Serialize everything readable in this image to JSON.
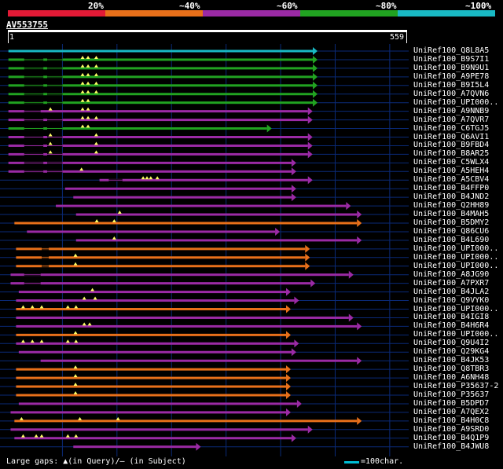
{
  "legend": {
    "labels": [
      "20%",
      "~40%",
      "~60%",
      "~80%",
      "~100%"
    ],
    "colors": [
      "#e31a36",
      "#e8701a",
      "#9b2aa5",
      "#21a321",
      "#19b9c4"
    ]
  },
  "query": {
    "id": "AV553755",
    "start": "1",
    "end": "559",
    "length": 559
  },
  "colors": {
    "orange": "#e8701a",
    "purple": "#9b2aa5",
    "green": "#21a321",
    "cyan": "#19b9c4",
    "gap": "#ffff66",
    "grid": "#0a2a77"
  },
  "hits": [
    {
      "label": "UniRef100_Q8L8A5",
      "color": "cyan",
      "s": 1,
      "e": 559,
      "gq": [],
      "gs": []
    },
    {
      "label": "UniRef100_B9S7I1",
      "color": "green",
      "s": 1,
      "e": 559,
      "gq": [
        137,
        147,
        162
      ],
      "gs": [
        [
          30,
          65
        ],
        [
          72,
          100
        ]
      ]
    },
    {
      "label": "UniRef100_B9N9U1",
      "color": "green",
      "s": 1,
      "e": 559,
      "gq": [
        137,
        147,
        162
      ],
      "gs": [
        [
          30,
          65
        ],
        [
          72,
          100
        ]
      ]
    },
    {
      "label": "UniRef100_A9PE78",
      "color": "green",
      "s": 1,
      "e": 559,
      "gq": [
        137,
        147,
        162
      ],
      "gs": [
        [
          30,
          65
        ],
        [
          72,
          100
        ]
      ]
    },
    {
      "label": "UniRef100_B9I5L4",
      "color": "green",
      "s": 1,
      "e": 559,
      "gq": [
        137,
        147,
        162
      ],
      "gs": [
        [
          30,
          65
        ],
        [
          72,
          100
        ]
      ]
    },
    {
      "label": "UniRef100_A7QVN6",
      "color": "green",
      "s": 1,
      "e": 559,
      "gq": [
        137,
        147,
        162
      ],
      "gs": [
        [
          30,
          65
        ],
        [
          72,
          100
        ]
      ]
    },
    {
      "label": "UniRef100_UPI000..",
      "color": "green",
      "s": 1,
      "e": 559,
      "gq": [
        137,
        147
      ],
      "gs": [
        [
          30,
          65
        ],
        [
          72,
          100
        ]
      ]
    },
    {
      "label": "UniRef100_A9NNB9",
      "color": "purple",
      "s": 1,
      "e": 550,
      "gq": [
        78,
        137,
        147
      ],
      "gs": [
        [
          30,
          60
        ]
      ]
    },
    {
      "label": "UniRef100_A7QVR7",
      "color": "purple",
      "s": 1,
      "e": 550,
      "gq": [
        137,
        147,
        162
      ],
      "gs": [
        [
          30,
          65
        ],
        [
          72,
          100
        ]
      ]
    },
    {
      "label": "UniRef100_C6TGJ5",
      "color": "green",
      "s": 1,
      "e": 475,
      "gq": [
        137,
        147
      ],
      "gs": [
        [
          30,
          65
        ],
        [
          72,
          100
        ]
      ]
    },
    {
      "label": "UniRef100_Q6AVI1",
      "color": "purple",
      "s": 1,
      "e": 550,
      "gq": [
        78,
        162
      ],
      "gs": [
        [
          30,
          65
        ],
        [
          72,
          100
        ]
      ]
    },
    {
      "label": "UniRef100_B9FBD4",
      "color": "purple",
      "s": 1,
      "e": 550,
      "gq": [
        78,
        162
      ],
      "gs": [
        [
          30,
          65
        ],
        [
          72,
          100
        ]
      ]
    },
    {
      "label": "UniRef100_B8AR25",
      "color": "purple",
      "s": 1,
      "e": 550,
      "gq": [
        78,
        162
      ],
      "gs": [
        [
          30,
          65
        ],
        [
          72,
          100
        ]
      ]
    },
    {
      "label": "UniRef100_C5WLX4",
      "color": "purple",
      "s": 1,
      "e": 520,
      "gq": [],
      "gs": [
        [
          30,
          65
        ],
        [
          72,
          100
        ]
      ]
    },
    {
      "label": "UniRef100_A5HEH4",
      "color": "purple",
      "s": 1,
      "e": 520,
      "gq": [
        135
      ],
      "gs": [
        [
          30,
          65
        ],
        [
          72,
          100
        ]
      ]
    },
    {
      "label": "UniRef100_A5CBV4",
      "color": "purple",
      "s": 168,
      "e": 550,
      "gq": [
        248,
        255,
        262,
        274
      ],
      "gs": [
        [
          185,
          210
        ]
      ]
    },
    {
      "label": "UniRef100_B4FFP0",
      "color": "purple",
      "s": 105,
      "e": 520,
      "gq": [],
      "gs": []
    },
    {
      "label": "UniRef100_B4JND2",
      "color": "purple",
      "s": 120,
      "e": 520,
      "gq": [],
      "gs": []
    },
    {
      "label": "UniRef100_Q2HH89",
      "color": "purple",
      "s": 88,
      "e": 620,
      "gq": [],
      "gs": []
    },
    {
      "label": "UniRef100_B4MAH5",
      "color": "purple",
      "s": 125,
      "e": 640,
      "gq": [
        205
      ],
      "gs": []
    },
    {
      "label": "UniRef100_B5DMY2",
      "color": "orange",
      "s": 12,
      "e": 640,
      "gq": [
        163,
        195
      ],
      "gs": []
    },
    {
      "label": "UniRef100_Q86CU6",
      "color": "purple",
      "s": 35,
      "e": 490,
      "gq": [],
      "gs": []
    },
    {
      "label": "UniRef100_B4L690",
      "color": "purple",
      "s": 125,
      "e": 640,
      "gq": [
        195
      ],
      "gs": []
    },
    {
      "label": "UniRef100_UPI000..",
      "color": "orange",
      "s": 15,
      "e": 545,
      "gq": [],
      "gs": [
        [
          62,
          75
        ]
      ]
    },
    {
      "label": "UniRef100_UPI000..",
      "color": "orange",
      "s": 15,
      "e": 545,
      "gq": [
        124
      ],
      "gs": [
        [
          62,
          75
        ]
      ]
    },
    {
      "label": "UniRef100_UPI000..",
      "color": "orange",
      "s": 15,
      "e": 545,
      "gq": [
        124
      ],
      "gs": [
        [
          62,
          75
        ]
      ]
    },
    {
      "label": "UniRef100_A8JG90",
      "color": "purple",
      "s": 5,
      "e": 625,
      "gq": [],
      "gs": [
        [
          30,
          60
        ]
      ]
    },
    {
      "label": "UniRef100_A7PXR7",
      "color": "purple",
      "s": 5,
      "e": 555,
      "gq": [],
      "gs": [
        [
          30,
          60
        ]
      ]
    },
    {
      "label": "UniRef100_B4JLA2",
      "color": "purple",
      "s": 20,
      "e": 510,
      "gq": [
        155
      ],
      "gs": []
    },
    {
      "label": "UniRef100_Q9VYK0",
      "color": "purple",
      "s": 15,
      "e": 525,
      "gq": [
        140,
        160
      ],
      "gs": []
    },
    {
      "label": "UniRef100_UPI000..",
      "color": "orange",
      "s": 15,
      "e": 510,
      "gq": [
        28,
        45,
        62,
        110,
        125
      ],
      "gs": []
    },
    {
      "label": "UniRef100_B4IGI8",
      "color": "purple",
      "s": 15,
      "e": 625,
      "gq": [],
      "gs": []
    },
    {
      "label": "UniRef100_B4H6R4",
      "color": "purple",
      "s": 15,
      "e": 640,
      "gq": [
        140,
        150
      ],
      "gs": []
    },
    {
      "label": "UniRef100_UPI000..",
      "color": "orange",
      "s": 15,
      "e": 510,
      "gq": [
        124
      ],
      "gs": []
    },
    {
      "label": "UniRef100_Q9U4I2",
      "color": "purple",
      "s": 15,
      "e": 525,
      "gq": [
        28,
        45,
        62,
        110,
        125
      ],
      "gs": []
    },
    {
      "label": "UniRef100_Q29KG4",
      "color": "purple",
      "s": 20,
      "e": 520,
      "gq": [],
      "gs": []
    },
    {
      "label": "UniRef100_B4JK53",
      "color": "purple",
      "s": 60,
      "e": 640,
      "gq": [],
      "gs": []
    },
    {
      "label": "UniRef100_Q8TBR3",
      "color": "orange",
      "s": 15,
      "e": 510,
      "gq": [
        124
      ],
      "gs": []
    },
    {
      "label": "UniRef100_A6NH48",
      "color": "orange",
      "s": 15,
      "e": 510,
      "gq": [
        124
      ],
      "gs": []
    },
    {
      "label": "UniRef100_P35637-2",
      "color": "orange",
      "s": 15,
      "e": 510,
      "gq": [
        124
      ],
      "gs": []
    },
    {
      "label": "UniRef100_P35637",
      "color": "orange",
      "s": 15,
      "e": 510,
      "gq": [
        124
      ],
      "gs": []
    },
    {
      "label": "UniRef100_B5DPD7",
      "color": "purple",
      "s": 20,
      "e": 530,
      "gq": [],
      "gs": []
    },
    {
      "label": "UniRef100_A7QEX2",
      "color": "purple",
      "s": 5,
      "e": 510,
      "gq": [],
      "gs": []
    },
    {
      "label": "UniRef100_B4H0C8",
      "color": "orange",
      "s": 12,
      "e": 640,
      "gq": [
        25,
        132,
        202
      ],
      "gs": []
    },
    {
      "label": "UniRef100_A9SRD0",
      "color": "purple",
      "s": 5,
      "e": 550,
      "gq": [],
      "gs": []
    },
    {
      "label": "UniRef100_B4Q1P9",
      "color": "purple",
      "s": 12,
      "e": 520,
      "gq": [
        28,
        52,
        62,
        110,
        125
      ],
      "gs": []
    },
    {
      "label": "UniRef100_B4JWU8",
      "color": "purple",
      "s": 120,
      "e": 345,
      "gq": [],
      "gs": []
    }
  ],
  "footer": {
    "large_gaps": "Large gaps: ▲(in Query)/– (in Subject)",
    "scale_label": "=100char."
  }
}
